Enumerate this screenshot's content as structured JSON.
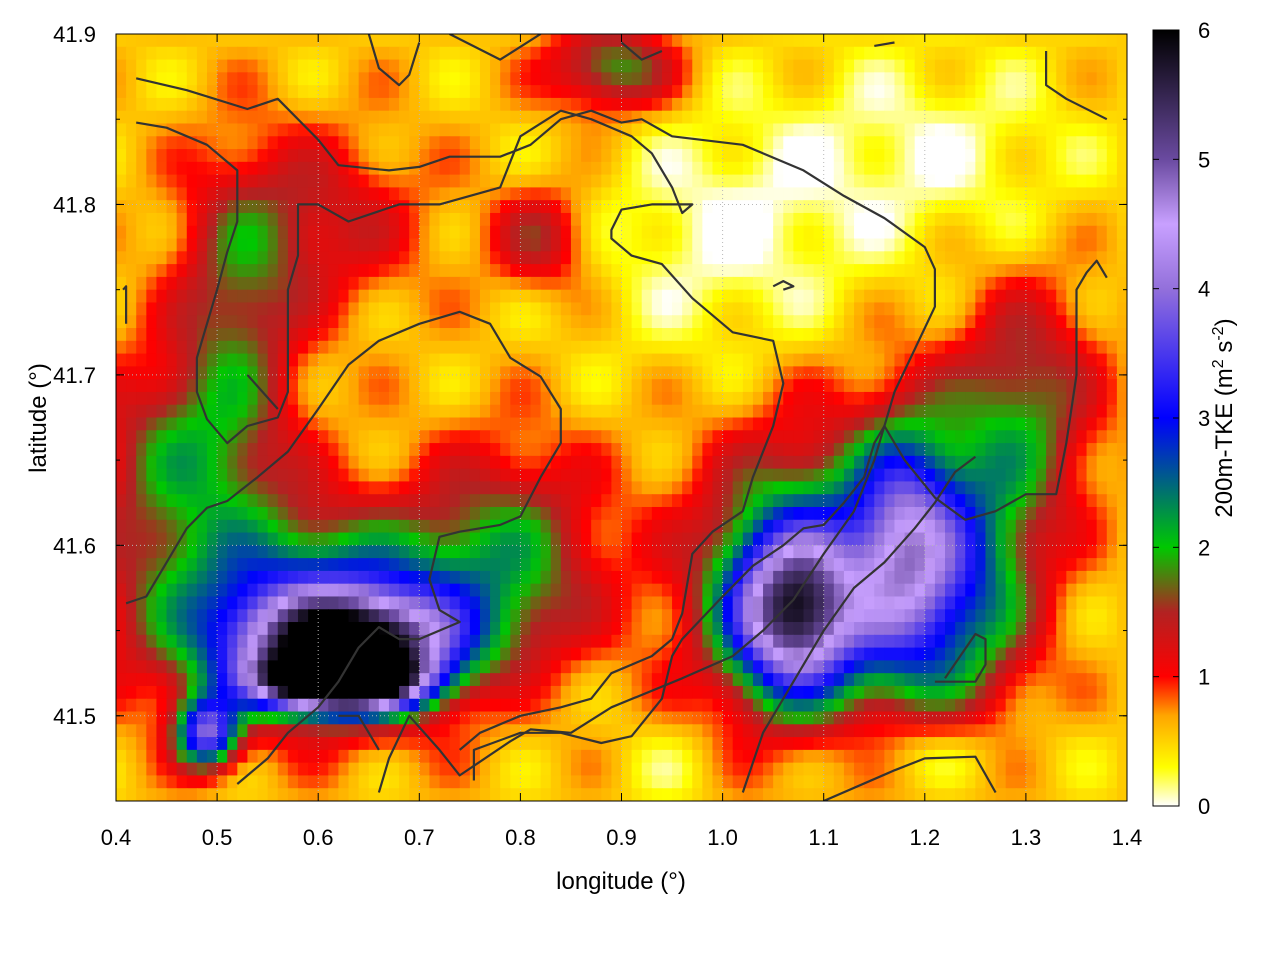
{
  "chart_data": {
    "type": "heatmap",
    "title": "",
    "xlabel": "longitude (°)",
    "ylabel": "latitude (°)",
    "colorbar_label": "200m-TKE (m2 s-2)",
    "colorbar_label_parts": {
      "main": "200m-TKE (m",
      "sup1": "2",
      "mid": " s",
      "sup2": "-2",
      "end": ")"
    },
    "xlim": [
      0.4,
      1.4
    ],
    "ylim": [
      41.45,
      41.9
    ],
    "zlim": [
      0,
      6
    ],
    "xticks": [
      "0.4",
      "0.5",
      "0.6",
      "0.7",
      "0.8",
      "0.9",
      "1.0",
      "1.1",
      "1.2",
      "1.3",
      "1.4"
    ],
    "yticks": [
      "41.5",
      "41.6",
      "41.7",
      "41.8",
      "41.9"
    ],
    "cticks": [
      "0",
      "1",
      "2",
      "3",
      "4",
      "5",
      "6"
    ],
    "xtick_values": [
      0.4,
      0.5,
      0.6,
      0.7,
      0.8,
      0.9,
      1.0,
      1.1,
      1.2,
      1.3,
      1.4
    ],
    "ytick_values": [
      41.5,
      41.6,
      41.7,
      41.8,
      41.9
    ],
    "ctick_values": [
      0,
      1,
      2,
      3,
      4,
      5,
      6
    ],
    "grid": true,
    "colormap": [
      {
        "v": 0.0,
        "c": "#ffffff"
      },
      {
        "v": 0.3,
        "c": "#ffff00"
      },
      {
        "v": 0.7,
        "c": "#ffa500"
      },
      {
        "v": 1.0,
        "c": "#ff0000"
      },
      {
        "v": 1.5,
        "c": "#b22222"
      },
      {
        "v": 2.0,
        "c": "#00c800"
      },
      {
        "v": 3.0,
        "c": "#0000ff"
      },
      {
        "v": 4.0,
        "c": "#9370db"
      },
      {
        "v": 4.5,
        "c": "#c8a0ff"
      },
      {
        "v": 5.0,
        "c": "#6a4aa0"
      },
      {
        "v": 6.0,
        "c": "#000000"
      }
    ],
    "field_background": 0.55,
    "field_features": [
      {
        "lon": 0.62,
        "lat": 41.52,
        "value": 6.0,
        "rx": 0.07,
        "ry": 0.015
      },
      {
        "lon": 0.63,
        "lat": 41.54,
        "value": 4.3,
        "rx": 0.1,
        "ry": 0.03
      },
      {
        "lon": 0.6,
        "lat": 41.56,
        "value": 2.6,
        "rx": 0.17,
        "ry": 0.055
      },
      {
        "lon": 0.49,
        "lat": 41.49,
        "value": 3.0,
        "rx": 0.03,
        "ry": 0.02
      },
      {
        "lon": 1.07,
        "lat": 41.56,
        "value": 3.4,
        "rx": 0.06,
        "ry": 0.045
      },
      {
        "lon": 1.09,
        "lat": 41.58,
        "value": 2.2,
        "rx": 0.11,
        "ry": 0.08
      },
      {
        "lon": 1.18,
        "lat": 41.6,
        "value": 2.3,
        "rx": 0.05,
        "ry": 0.07
      },
      {
        "lon": 1.24,
        "lat": 41.58,
        "value": 1.8,
        "rx": 0.07,
        "ry": 0.08
      },
      {
        "lon": 0.47,
        "lat": 41.65,
        "value": 1.3,
        "rx": 0.09,
        "ry": 0.06
      },
      {
        "lon": 0.52,
        "lat": 41.74,
        "value": 1.0,
        "rx": 0.06,
        "ry": 0.08
      },
      {
        "lon": 0.79,
        "lat": 41.6,
        "value": 1.1,
        "rx": 0.09,
        "ry": 0.06
      },
      {
        "lon": 0.89,
        "lat": 41.88,
        "value": 1.4,
        "rx": 0.06,
        "ry": 0.025
      },
      {
        "lon": 0.82,
        "lat": 41.78,
        "value": 0.9,
        "rx": 0.05,
        "ry": 0.03
      },
      {
        "lon": 0.6,
        "lat": 41.79,
        "value": 0.8,
        "rx": 0.1,
        "ry": 0.05
      },
      {
        "lon": 1.3,
        "lat": 41.68,
        "value": 1.2,
        "rx": 0.07,
        "ry": 0.07
      },
      {
        "lon": 1.0,
        "lat": 41.78,
        "value": -0.5,
        "rx": 0.13,
        "ry": 0.07
      },
      {
        "lon": 1.2,
        "lat": 41.83,
        "value": -0.45,
        "rx": 0.15,
        "ry": 0.06
      },
      {
        "lon": 1.2,
        "lat": 41.48,
        "value": -0.5,
        "rx": 0.1,
        "ry": 0.025
      },
      {
        "lon": 0.77,
        "lat": 41.52,
        "value": -0.3,
        "rx": 0.06,
        "ry": 0.025
      },
      {
        "lon": 0.95,
        "lat": 41.47,
        "value": -0.25,
        "rx": 0.06,
        "ry": 0.025
      }
    ],
    "contours": [
      [
        [
          0.42,
          41.874
        ],
        [
          0.47,
          41.867
        ],
        [
          0.53,
          41.856
        ],
        [
          0.56,
          41.862
        ],
        [
          0.6,
          41.838
        ],
        [
          0.62,
          41.823
        ],
        [
          0.67,
          41.82
        ],
        [
          0.7,
          41.822
        ],
        [
          0.73,
          41.828
        ],
        [
          0.78,
          41.828
        ],
        [
          0.81,
          41.835
        ],
        [
          0.84,
          41.85
        ],
        [
          0.87,
          41.855
        ],
        [
          0.9,
          41.848
        ],
        [
          0.92,
          41.85
        ],
        [
          0.95,
          41.84
        ],
        [
          1.02,
          41.835
        ],
        [
          1.08,
          41.82
        ],
        [
          1.12,
          41.805
        ],
        [
          1.16,
          41.792
        ],
        [
          1.2,
          41.775
        ],
        [
          1.21,
          41.762
        ],
        [
          1.21,
          41.74
        ],
        [
          1.19,
          41.715
        ],
        [
          1.17,
          41.69
        ],
        [
          1.15,
          41.65
        ],
        [
          1.13,
          41.62
        ],
        [
          1.1,
          41.595
        ],
        [
          1.07,
          41.568
        ],
        [
          1.04,
          41.55
        ],
        [
          1.01,
          41.535
        ],
        [
          0.96,
          41.522
        ],
        [
          0.89,
          41.505
        ],
        [
          0.85,
          41.49
        ],
        [
          0.81,
          41.492
        ],
        [
          0.79,
          41.485
        ],
        [
          0.74,
          41.465
        ],
        [
          0.72,
          41.48
        ],
        [
          0.69,
          41.5
        ],
        [
          0.67,
          41.475
        ],
        [
          0.66,
          41.455
        ]
      ],
      [
        [
          0.42,
          41.848
        ],
        [
          0.45,
          41.845
        ],
        [
          0.49,
          41.835
        ],
        [
          0.52,
          41.82
        ],
        [
          0.52,
          41.79
        ],
        [
          0.51,
          41.772
        ],
        [
          0.5,
          41.75
        ],
        [
          0.48,
          41.71
        ],
        [
          0.48,
          41.69
        ],
        [
          0.49,
          41.674
        ],
        [
          0.51,
          41.66
        ],
        [
          0.53,
          41.67
        ],
        [
          0.56,
          41.675
        ],
        [
          0.57,
          41.69
        ],
        [
          0.57,
          41.72
        ],
        [
          0.57,
          41.75
        ],
        [
          0.58,
          41.77
        ],
        [
          0.58,
          41.8
        ],
        [
          0.6,
          41.8
        ],
        [
          0.63,
          41.79
        ],
        [
          0.68,
          41.8
        ],
        [
          0.72,
          41.8
        ],
        [
          0.78,
          41.81
        ],
        [
          0.8,
          41.84
        ],
        [
          0.84,
          41.855
        ],
        [
          0.87,
          41.85
        ],
        [
          0.91,
          41.84
        ],
        [
          0.93,
          41.83
        ],
        [
          0.95,
          41.81
        ],
        [
          0.96,
          41.795
        ],
        [
          0.97,
          41.8
        ],
        [
          0.93,
          41.8
        ],
        [
          0.9,
          41.797
        ],
        [
          0.89,
          41.785
        ],
        [
          0.89,
          41.78
        ],
        [
          0.91,
          41.77
        ],
        [
          0.94,
          41.765
        ],
        [
          0.97,
          41.745
        ],
        [
          1.01,
          41.725
        ],
        [
          1.05,
          41.72
        ],
        [
          1.06,
          41.695
        ],
        [
          1.05,
          41.67
        ],
        [
          1.03,
          41.64
        ],
        [
          1.02,
          41.62
        ],
        [
          0.99,
          41.608
        ],
        [
          0.97,
          41.595
        ],
        [
          0.96,
          41.56
        ],
        [
          0.95,
          41.545
        ],
        [
          0.93,
          41.535
        ],
        [
          0.89,
          41.525
        ],
        [
          0.87,
          41.51
        ],
        [
          0.84,
          41.505
        ],
        [
          0.8,
          41.5
        ],
        [
          0.76,
          41.49
        ],
        [
          0.74,
          41.48
        ]
      ],
      [
        [
          0.41,
          41.566
        ],
        [
          0.43,
          41.57
        ],
        [
          0.45,
          41.59
        ],
        [
          0.47,
          41.61
        ],
        [
          0.49,
          41.622
        ],
        [
          0.51,
          41.626
        ],
        [
          0.54,
          41.64
        ],
        [
          0.57,
          41.655
        ],
        [
          0.6,
          41.68
        ],
        [
          0.63,
          41.706
        ],
        [
          0.66,
          41.72
        ],
        [
          0.7,
          41.73
        ],
        [
          0.74,
          41.737
        ],
        [
          0.77,
          41.73
        ],
        [
          0.79,
          41.71
        ],
        [
          0.82,
          41.699
        ],
        [
          0.84,
          41.68
        ],
        [
          0.84,
          41.66
        ],
        [
          0.82,
          41.64
        ],
        [
          0.8,
          41.617
        ],
        [
          0.78,
          41.612
        ],
        [
          0.74,
          41.608
        ],
        [
          0.72,
          41.605
        ],
        [
          0.71,
          41.58
        ],
        [
          0.72,
          41.562
        ],
        [
          0.74,
          41.555
        ],
        [
          0.7,
          41.545
        ],
        [
          0.68,
          41.545
        ],
        [
          0.66,
          41.552
        ],
        [
          0.64,
          41.54
        ],
        [
          0.62,
          41.52
        ],
        [
          0.6,
          41.505
        ],
        [
          0.57,
          41.49
        ],
        [
          0.55,
          41.475
        ],
        [
          0.52,
          41.46
        ]
      ],
      [
        [
          0.754,
          41.462
        ],
        [
          0.754,
          41.48
        ],
        [
          0.8,
          41.49
        ],
        [
          0.84,
          41.49
        ],
        [
          0.88,
          41.484
        ],
        [
          0.91,
          41.488
        ],
        [
          0.94,
          41.51
        ],
        [
          0.95,
          41.535
        ],
        [
          0.96,
          41.545
        ],
        [
          1.0,
          41.57
        ],
        [
          1.03,
          41.588
        ],
        [
          1.06,
          41.6
        ],
        [
          1.08,
          41.61
        ],
        [
          1.1,
          41.612
        ],
        [
          1.12,
          41.625
        ],
        [
          1.14,
          41.64
        ],
        [
          1.15,
          41.66
        ],
        [
          1.16,
          41.67
        ],
        [
          1.18,
          41.65
        ],
        [
          1.21,
          41.628
        ],
        [
          1.24,
          41.615
        ],
        [
          1.27,
          41.62
        ],
        [
          1.3,
          41.63
        ],
        [
          1.33,
          41.63
        ],
        [
          1.34,
          41.66
        ],
        [
          1.35,
          41.7
        ],
        [
          1.35,
          41.75
        ],
        [
          1.36,
          41.76
        ],
        [
          1.37,
          41.767
        ],
        [
          1.38,
          41.757
        ]
      ],
      [
        [
          1.02,
          41.455
        ],
        [
          1.04,
          41.49
        ],
        [
          1.07,
          41.52
        ],
        [
          1.1,
          41.55
        ],
        [
          1.13,
          41.575
        ],
        [
          1.16,
          41.59
        ],
        [
          1.19,
          41.61
        ],
        [
          1.21,
          41.625
        ],
        [
          1.23,
          41.643
        ],
        [
          1.25,
          41.652
        ]
      ],
      [
        [
          0.53,
          41.7
        ],
        [
          0.56,
          41.68
        ]
      ],
      [
        [
          0.407,
          41.75
        ],
        [
          0.41,
          41.752
        ],
        [
          0.41,
          41.73
        ]
      ],
      [
        [
          0.62,
          41.5
        ],
        [
          0.64,
          41.5
        ],
        [
          0.65,
          41.49
        ],
        [
          0.66,
          41.48
        ]
      ],
      [
        [
          1.1,
          41.45
        ],
        [
          1.17,
          41.468
        ],
        [
          1.2,
          41.475
        ],
        [
          1.25,
          41.476
        ],
        [
          1.27,
          41.455
        ]
      ],
      [
        [
          1.21,
          41.52
        ],
        [
          1.25,
          41.52
        ],
        [
          1.26,
          41.53
        ],
        [
          1.26,
          41.545
        ],
        [
          1.25,
          41.548
        ],
        [
          1.22,
          41.522
        ]
      ],
      [
        [
          1.05,
          41.752
        ],
        [
          1.06,
          41.755
        ],
        [
          1.07,
          41.752
        ],
        [
          1.06,
          41.75
        ]
      ],
      [
        [
          0.65,
          41.9
        ],
        [
          0.66,
          41.88
        ],
        [
          0.68,
          41.87
        ],
        [
          0.69,
          41.876
        ],
        [
          0.7,
          41.895
        ]
      ],
      [
        [
          0.73,
          41.9
        ],
        [
          0.78,
          41.885
        ],
        [
          0.82,
          41.9
        ]
      ],
      [
        [
          0.9,
          41.895
        ],
        [
          0.92,
          41.885
        ],
        [
          0.94,
          41.89
        ]
      ],
      [
        [
          1.32,
          41.89
        ],
        [
          1.32,
          41.87
        ],
        [
          1.34,
          41.862
        ],
        [
          1.38,
          41.85
        ]
      ],
      [
        [
          1.15,
          41.893
        ],
        [
          1.17,
          41.895
        ]
      ]
    ]
  }
}
